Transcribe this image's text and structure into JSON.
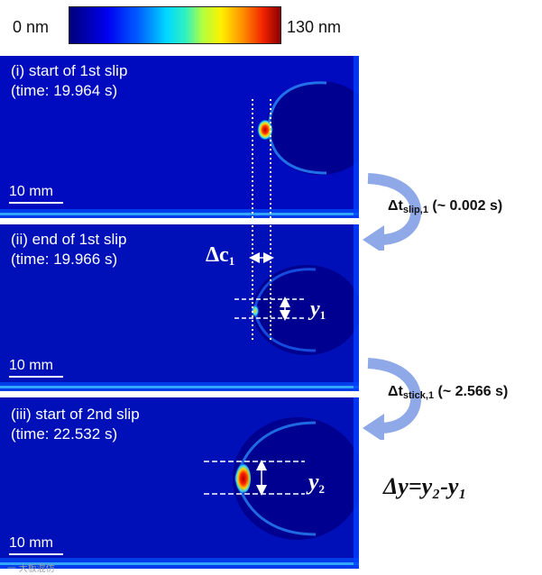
{
  "colorbar": {
    "min_label": "0 nm",
    "max_label": "130 nm",
    "colors": [
      "#00007a",
      "#0000f0",
      "#0060ff",
      "#00d8ff",
      "#b0ff40",
      "#fff000",
      "#ff9000",
      "#f02000",
      "#8a0000"
    ]
  },
  "panels": [
    {
      "label_line1": "(i) start of 1st slip",
      "label_line2": "(time: 19.964 s)",
      "scale": "10 mm"
    },
    {
      "label_line1": "(ii) end of 1st slip",
      "label_line2": "(time: 19.966 s)",
      "scale": "10 mm"
    },
    {
      "label_line1": "(iii) start of 2nd slip",
      "label_line2": "(time: 22.532 s)",
      "scale": "10 mm"
    }
  ],
  "transitions": [
    {
      "symbol": "Δt",
      "subscript": "slip,1",
      "value": "(~ 0.002 s)"
    },
    {
      "symbol": "Δt",
      "subscript": "stick,1",
      "value": "(~ 2.566 s)"
    }
  ],
  "annotations": {
    "dc_symbol": "Δc",
    "dc_sub": "1",
    "y1_symbol": "y",
    "y1_sub": "1",
    "y2_symbol": "y",
    "y2_sub": "2",
    "equation": "Δy=y₂-y₁"
  },
  "watermark": "一 大板混仿"
}
